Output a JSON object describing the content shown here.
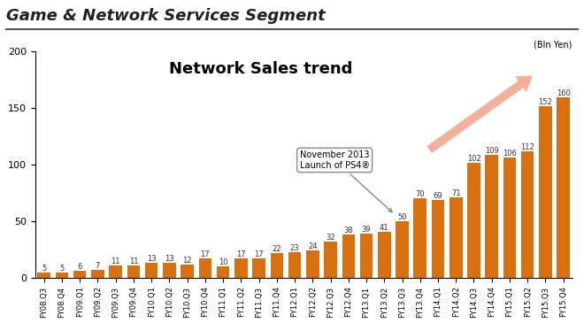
{
  "header": "Game & Network Services Segment",
  "chart_data": {
    "type": "bar",
    "title": "Network Sales trend",
    "y_label": "(Bln Yen)",
    "categories": [
      "FY08.Q3",
      "FY08.Q4",
      "FY09.Q1",
      "FY09.Q2",
      "FY09.Q3",
      "FY09.Q4",
      "FY10.Q1",
      "FY10.Q2",
      "FY10.Q3",
      "FY10.Q4",
      "FY11.Q1",
      "FY11.Q2",
      "FY11.Q3",
      "FY11.Q4",
      "FY12.Q1",
      "FY12.Q2",
      "FY12.Q3",
      "FY12.Q4",
      "FY13.Q1",
      "FY13.Q2",
      "FY13.Q3",
      "FY13.Q4",
      "FY14.Q1",
      "FY14.Q2",
      "FY14.Q3",
      "FY14.Q4",
      "FY15.Q1",
      "FY15.Q2",
      "FY15.Q3",
      "FY15.Q4"
    ],
    "values": [
      5,
      5,
      6,
      7,
      11,
      11,
      13,
      13,
      12,
      17,
      10,
      17,
      17,
      22,
      23,
      24,
      32,
      38,
      39,
      41,
      50,
      70,
      69,
      71,
      102,
      109,
      106,
      112,
      152,
      160
    ],
    "color": "#d9700f",
    "ylim": [
      0,
      200
    ],
    "yticks": [
      0,
      50,
      100,
      150,
      200
    ],
    "grid": false,
    "data_labels": true,
    "annotations": [
      {
        "text": "November 2013\nLaunch of PS4®",
        "x": "FY13.Q3"
      }
    ]
  }
}
